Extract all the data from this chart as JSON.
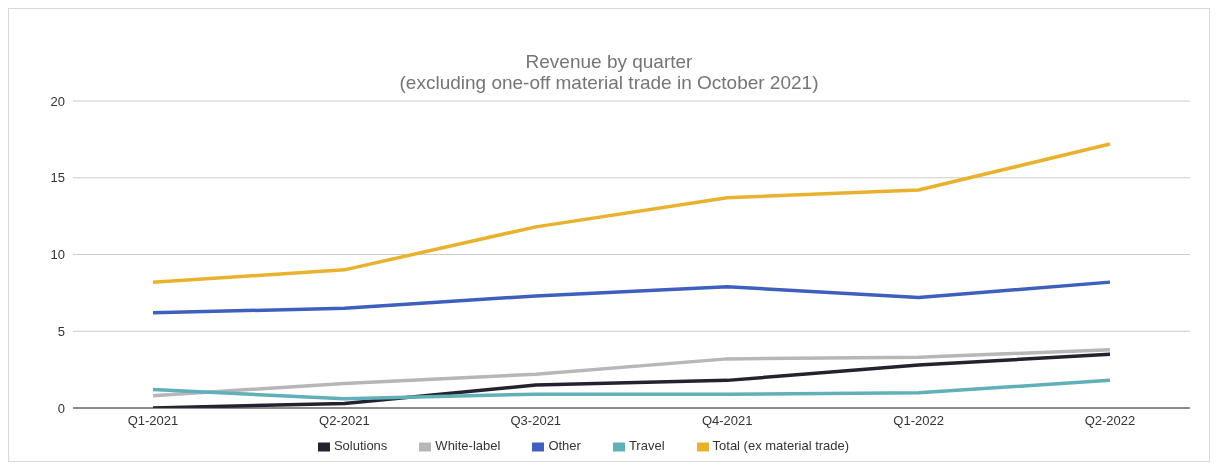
{
  "chart_data": {
    "type": "line",
    "title": "Revenue by quarter\n(excluding one-off material trade in October 2021)",
    "categories": [
      "Q1-2021",
      "Q2-2021",
      "Q3-2021",
      "Q4-2021",
      "Q1-2022",
      "Q2-2022"
    ],
    "series": [
      {
        "name": "Solutions",
        "color": "#23232f",
        "values": [
          0,
          0.3,
          1.5,
          1.8,
          2.8,
          3.5
        ]
      },
      {
        "name": "White-label",
        "color": "#b7b7b7",
        "values": [
          0.8,
          1.6,
          2.2,
          3.2,
          3.3,
          3.8
        ]
      },
      {
        "name": "Other",
        "color": "#3f5fbf",
        "values": [
          6.2,
          6.5,
          7.3,
          7.9,
          7.2,
          8.2
        ]
      },
      {
        "name": "Travel",
        "color": "#5fb0b8",
        "values": [
          1.2,
          0.6,
          0.9,
          0.9,
          1.0,
          1.8
        ]
      },
      {
        "name": "Total (ex material trade)",
        "color": "#e8b22e",
        "values": [
          8.2,
          9.0,
          11.8,
          13.7,
          14.2,
          17.2
        ]
      }
    ],
    "ylim": [
      0,
      20
    ],
    "yticks": [
      0,
      5,
      10,
      15,
      20
    ],
    "grid": "y",
    "legend": "bottom",
    "marker": "none",
    "line_style": "solid"
  }
}
